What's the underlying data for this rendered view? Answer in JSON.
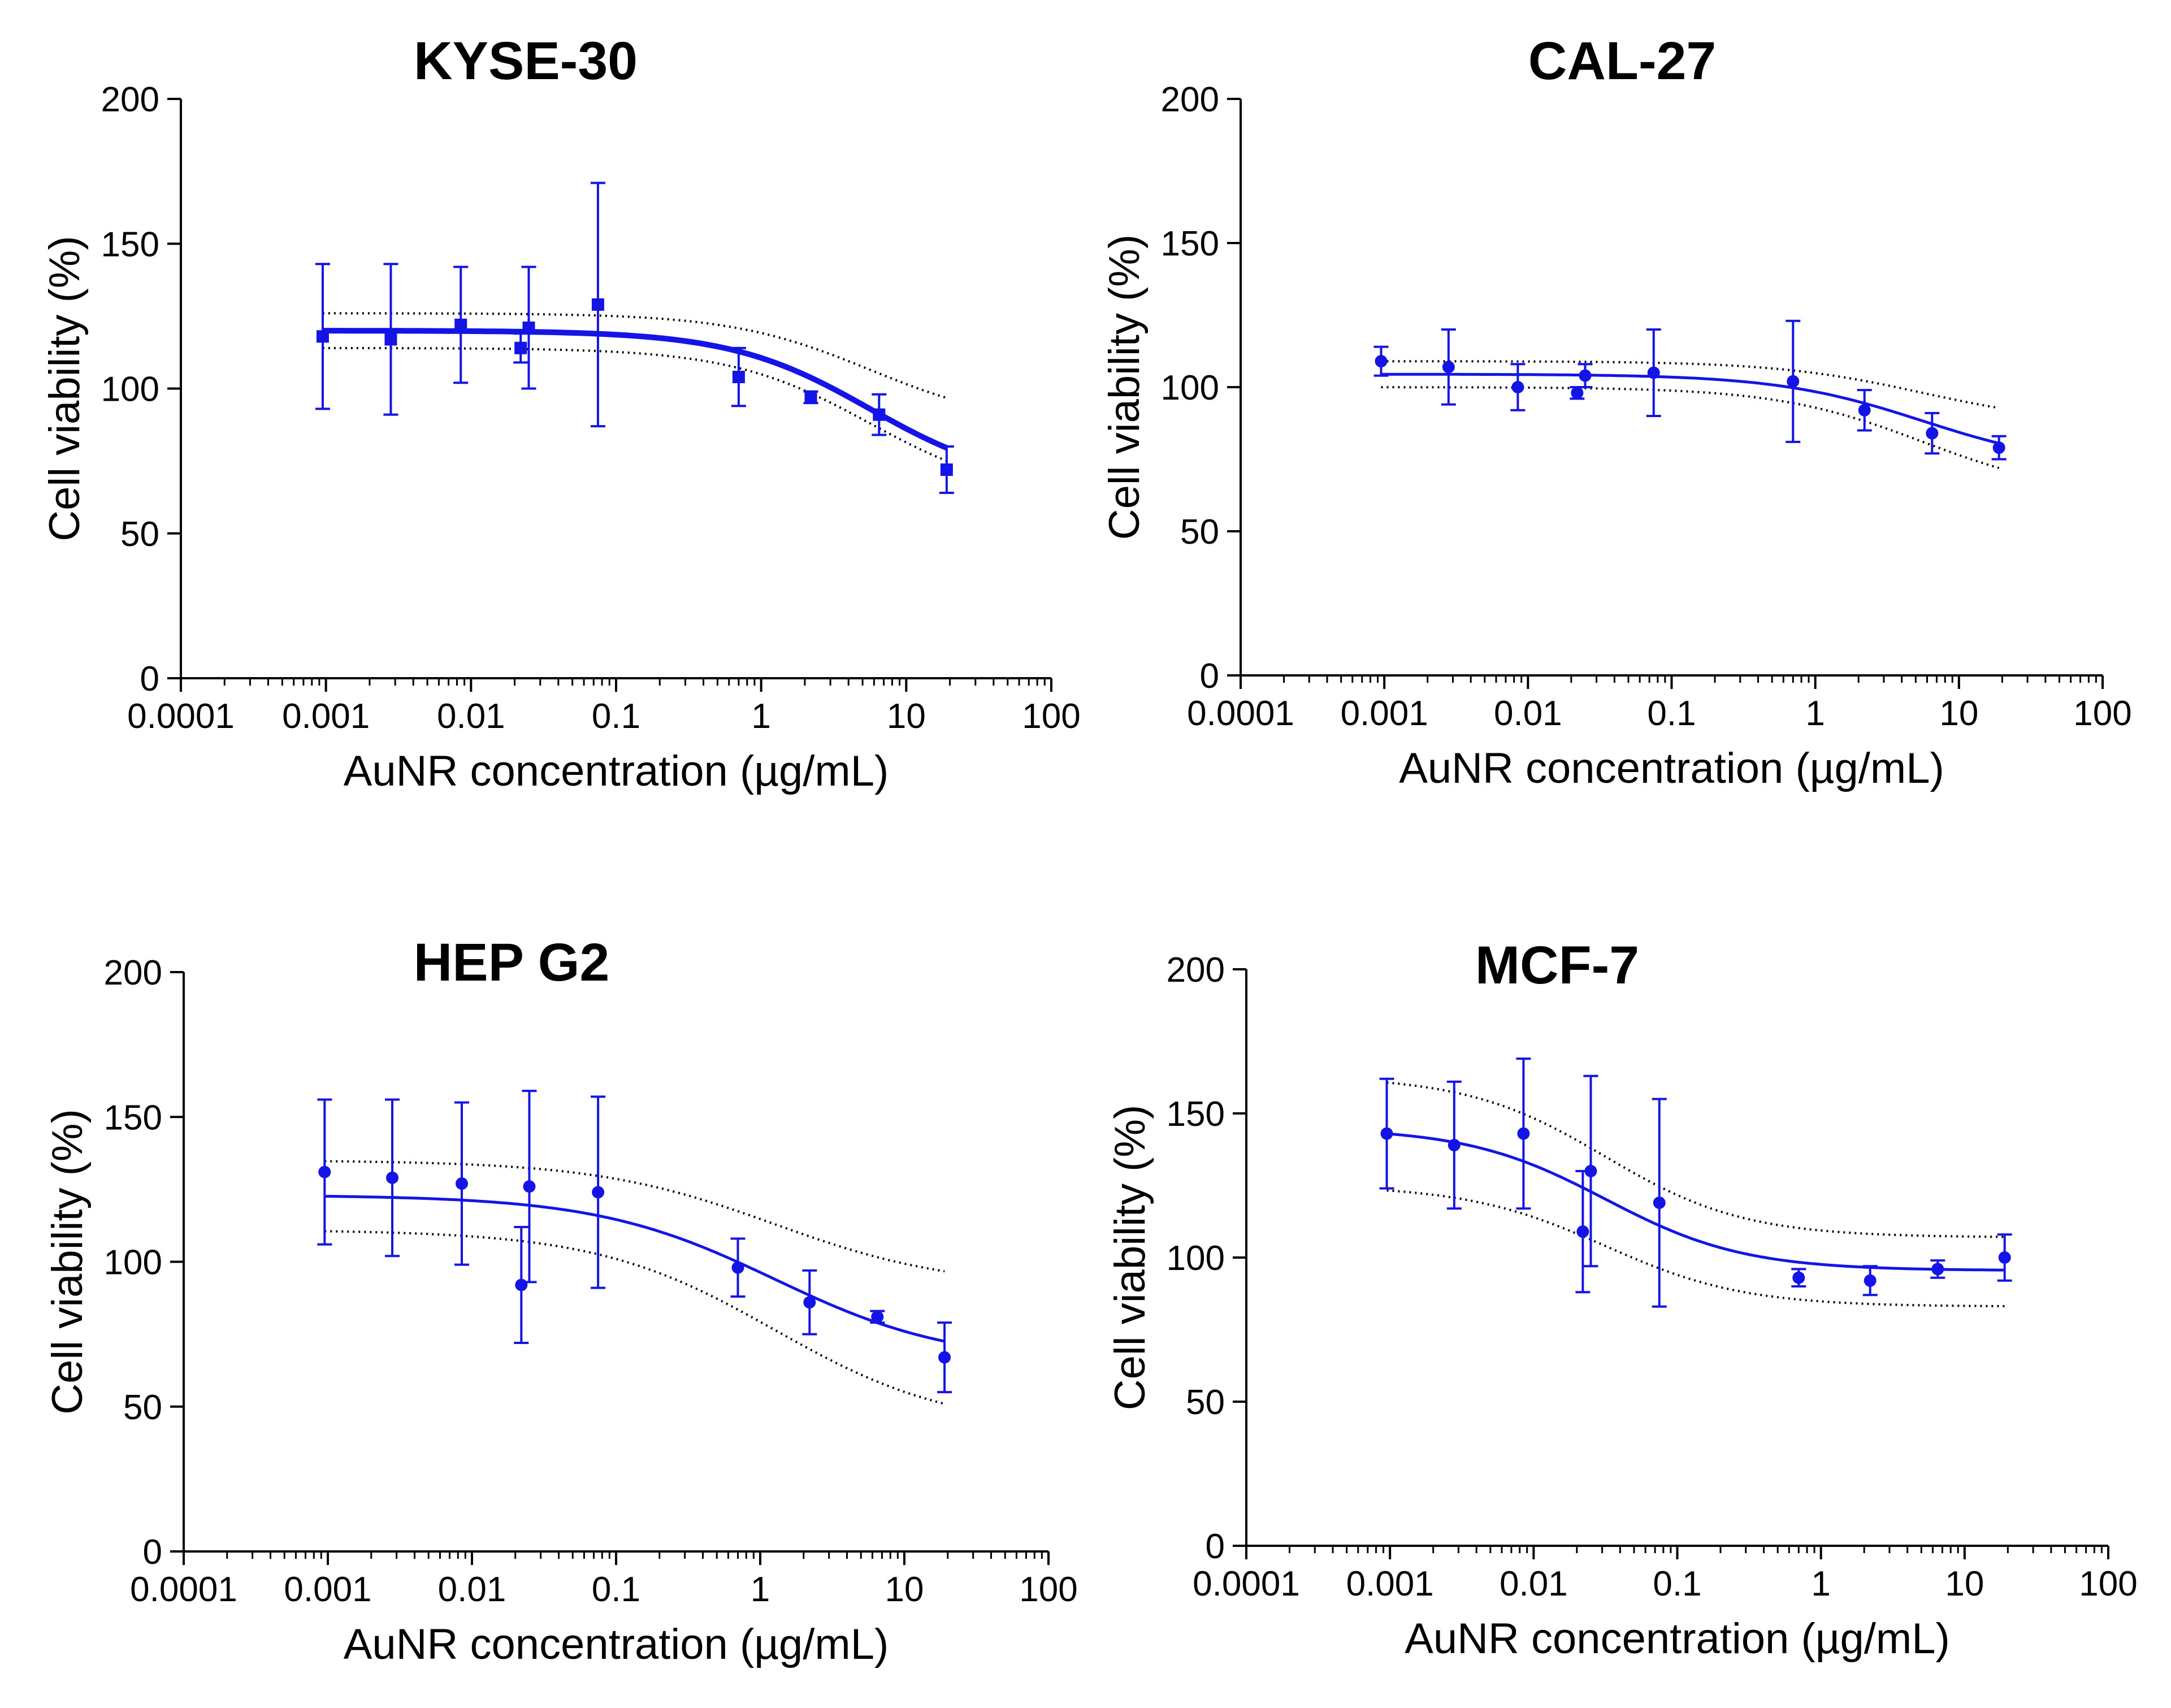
{
  "figure": {
    "series_color": "#1414e6"
  },
  "chart_data": [
    {
      "type": "scatter",
      "title": "KYSE-30",
      "xlabel": "AuNR concentration (µg/mL)",
      "ylabel": "Cell viability (%)",
      "xscale": "log",
      "xlim": [
        0.0001,
        100
      ],
      "ylim": [
        0,
        200
      ],
      "xticks": [
        "0.0001",
        "0.001",
        "0.01",
        "0.1",
        "1",
        "10",
        "100"
      ],
      "yticks": [
        "0",
        "50",
        "100",
        "150",
        "200"
      ],
      "marker": "square",
      "fit_bold": true,
      "points": [
        {
          "x": 0.00095,
          "y": 118,
          "err": 25
        },
        {
          "x": 0.0028,
          "y": 117,
          "err": 26
        },
        {
          "x": 0.0085,
          "y": 122,
          "err": 20
        },
        {
          "x": 0.022,
          "y": 114,
          "err": 5
        },
        {
          "x": 0.025,
          "y": 121,
          "err": 21
        },
        {
          "x": 0.075,
          "y": 129,
          "err": 42
        },
        {
          "x": 0.7,
          "y": 104,
          "err": 10
        },
        {
          "x": 2.2,
          "y": 97,
          "err": 2
        },
        {
          "x": 6.5,
          "y": 91,
          "err": 7
        },
        {
          "x": 19,
          "y": 72,
          "err": 8
        }
      ],
      "fit": {
        "top": 120,
        "bottom": 66,
        "log_ec50": 0.75,
        "hill": 0.9
      },
      "ci": {
        "upper_top": 126,
        "upper_bottom": 87,
        "lower_top": 114,
        "lower_bottom": 62
      }
    },
    {
      "type": "scatter",
      "title": "CAL-27",
      "xlabel": "AuNR concentration (µg/mL)",
      "ylabel": "Cell viability (%)",
      "xscale": "log",
      "xlim": [
        0.0001,
        100
      ],
      "ylim": [
        0,
        200
      ],
      "xticks": [
        "0.0001",
        "0.001",
        "0.01",
        "0.1",
        "1",
        "10",
        "100"
      ],
      "yticks": [
        "0",
        "50",
        "100",
        "150",
        "200"
      ],
      "marker": "circle",
      "fit_bold": false,
      "points": [
        {
          "x": 0.00095,
          "y": 109,
          "err": 5
        },
        {
          "x": 0.0028,
          "y": 107,
          "err": 13
        },
        {
          "x": 0.0085,
          "y": 100,
          "err": 8
        },
        {
          "x": 0.022,
          "y": 98,
          "err": 2
        },
        {
          "x": 0.025,
          "y": 104,
          "err": 4
        },
        {
          "x": 0.075,
          "y": 105,
          "err": 15
        },
        {
          "x": 0.7,
          "y": 102,
          "err": 21
        },
        {
          "x": 2.2,
          "y": 92,
          "err": 7
        },
        {
          "x": 6.5,
          "y": 84,
          "err": 7
        },
        {
          "x": 19,
          "y": 79,
          "err": 4
        }
      ],
      "fit": {
        "top": 104.5,
        "bottom": 72,
        "log_ec50": 0.75,
        "hill": 0.85
      },
      "ci": {
        "upper_top": 109,
        "upper_bottom": 87,
        "lower_top": 100,
        "lower_bottom": 62
      }
    },
    {
      "type": "scatter",
      "title": "HEP G2",
      "xlabel": "AuNR concentration (µg/mL)",
      "ylabel": "Cell viability (%)",
      "xscale": "log",
      "xlim": [
        0.0001,
        100
      ],
      "ylim": [
        0,
        200
      ],
      "xticks": [
        "0.0001",
        "0.001",
        "0.01",
        "0.1",
        "1",
        "10",
        "100"
      ],
      "yticks": [
        "0",
        "50",
        "100",
        "150",
        "200"
      ],
      "marker": "circle",
      "fit_bold": false,
      "points": [
        {
          "x": 0.00095,
          "y": 131,
          "err": 25
        },
        {
          "x": 0.0028,
          "y": 129,
          "err": 27
        },
        {
          "x": 0.0085,
          "y": 127,
          "err": 28
        },
        {
          "x": 0.022,
          "y": 92,
          "err": 20
        },
        {
          "x": 0.025,
          "y": 126,
          "err": 33
        },
        {
          "x": 0.075,
          "y": 124,
          "err": 33
        },
        {
          "x": 0.7,
          "y": 98,
          "err": 10
        },
        {
          "x": 2.2,
          "y": 86,
          "err": 11
        },
        {
          "x": 6.5,
          "y": 81,
          "err": 2
        },
        {
          "x": 19,
          "y": 67,
          "err": 12
        }
      ],
      "fit": {
        "top": 123,
        "bottom": 65,
        "log_ec50": 0.1,
        "hill": 0.7
      },
      "ci": {
        "upper_top": 135,
        "upper_bottom": 91,
        "lower_top": 111,
        "lower_bottom": 42
      }
    },
    {
      "type": "scatter",
      "title": "MCF-7",
      "xlabel": "AuNR concentration (µg/mL)",
      "ylabel": "Cell viability (%)",
      "xscale": "log",
      "xlim": [
        0.0001,
        100
      ],
      "ylim": [
        0,
        200
      ],
      "xticks": [
        "0.0001",
        "0.001",
        "0.01",
        "0.1",
        "1",
        "10",
        "100"
      ],
      "yticks": [
        "0",
        "50",
        "100",
        "150",
        "200"
      ],
      "marker": "circle",
      "fit_bold": false,
      "points": [
        {
          "x": 0.00095,
          "y": 143,
          "err": 19
        },
        {
          "x": 0.0028,
          "y": 139,
          "err": 22
        },
        {
          "x": 0.0085,
          "y": 143,
          "err": 26
        },
        {
          "x": 0.022,
          "y": 109,
          "err": 21
        },
        {
          "x": 0.025,
          "y": 130,
          "err": 33
        },
        {
          "x": 0.075,
          "y": 119,
          "err": 36
        },
        {
          "x": 0.7,
          "y": 93,
          "err": 3
        },
        {
          "x": 2.2,
          "y": 92,
          "err": 5
        },
        {
          "x": 6.5,
          "y": 96,
          "err": 3
        },
        {
          "x": 19,
          "y": 100,
          "err": 8
        }
      ],
      "fit": {
        "top": 145,
        "bottom": 95.5,
        "log_ec50": -1.5,
        "hill": 0.9
      },
      "ci": {
        "upper_top": 163,
        "upper_bottom": 107,
        "lower_top": 125,
        "lower_bottom": 83
      }
    }
  ]
}
